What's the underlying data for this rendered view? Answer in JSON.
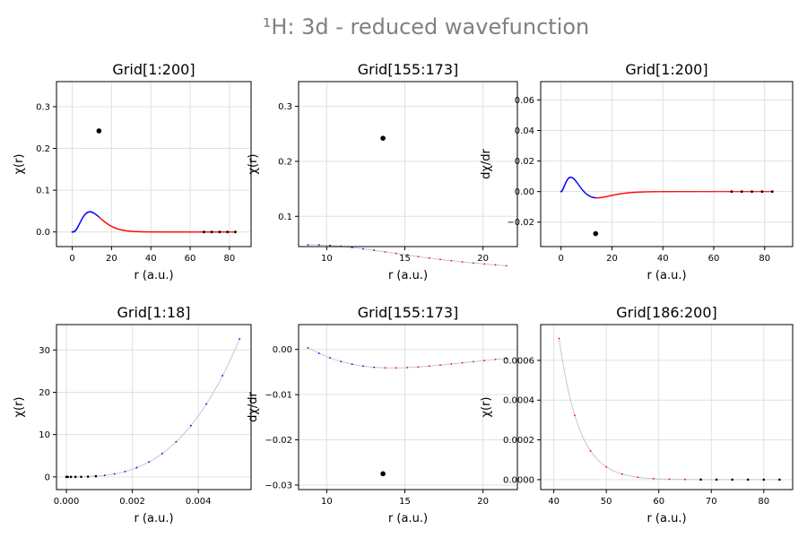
{
  "figure": {
    "title": "¹H: 3d - reduced wavefunction"
  },
  "colors": {
    "inner": "#0000ff",
    "outer": "#ff0000",
    "marker": "#000000",
    "curve": "#c8c8c8",
    "title": "#808080"
  },
  "chart_data": [
    {
      "type": "scatter",
      "title": "Grid[1:200]",
      "xlabel": "r (a.u.)",
      "ylabel": "χ(r)",
      "xlim": [
        -8,
        91
      ],
      "ylim": [
        -0.035,
        0.36
      ],
      "xticks": [
        0,
        20,
        40,
        60,
        80
      ],
      "xtick_labels": [
        "0",
        "20",
        "40",
        "60",
        "80"
      ],
      "yticks": [
        0,
        0.1,
        0.2,
        0.3
      ],
      "ytick_labels": [
        "0.0",
        "0.1",
        "0.2",
        "0.3"
      ],
      "curve": "wave",
      "range": [
        0,
        83
      ],
      "n": 200,
      "split": 13.6,
      "highlight": [
        13.6,
        0.242
      ],
      "tail_black": [
        67,
        71,
        75,
        79,
        83
      ]
    },
    {
      "type": "scatter",
      "title": "Grid[155:173]",
      "xlabel": "r (a.u.)",
      "ylabel": "χ(r)",
      "xlim": [
        8.2,
        22.2
      ],
      "ylim": [
        0.045,
        0.345
      ],
      "xticks": [
        10,
        15,
        20
      ],
      "xtick_labels": [
        "10",
        "15",
        "20"
      ],
      "yticks": [
        0.1,
        0.2,
        0.3
      ],
      "ytick_labels": [
        "0.1",
        "0.2",
        "0.3"
      ],
      "curve": "wave",
      "range": [
        8.8,
        21.5
      ],
      "n": 19,
      "split": 13.6,
      "highlight": [
        13.6,
        0.242
      ],
      "tail_black": []
    },
    {
      "type": "scatter",
      "title": "Grid[1:200]",
      "xlabel": "r (a.u.)",
      "ylabel": "dχ/dr",
      "xlim": [
        -8,
        91
      ],
      "ylim": [
        -0.036,
        0.072
      ],
      "xticks": [
        0,
        20,
        40,
        60,
        80
      ],
      "xtick_labels": [
        "0",
        "20",
        "40",
        "60",
        "80"
      ],
      "yticks": [
        -0.02,
        0,
        0.02,
        0.04,
        0.06
      ],
      "ytick_labels": [
        "−0.02",
        "0.00",
        "0.02",
        "0.04",
        "0.06"
      ],
      "curve": "deriv",
      "range": [
        0,
        83
      ],
      "n": 200,
      "split": 13.6,
      "highlight": [
        13.6,
        -0.0275
      ],
      "tail_black": [
        67,
        71,
        75,
        79,
        83
      ]
    },
    {
      "type": "scatter",
      "title": "Grid[1:18]",
      "xlabel": "r (a.u.)",
      "ylabel": "χ(r)",
      "xlim": [
        -0.0003,
        0.0056
      ],
      "ylim": [
        -3,
        36
      ],
      "xticks": [
        0,
        0.002,
        0.004
      ],
      "xtick_labels": [
        "0.000",
        "0.002",
        "0.004"
      ],
      "yticks": [
        0,
        10,
        20,
        30
      ],
      "ytick_labels": [
        "0",
        "10",
        "20",
        "30"
      ],
      "curve": "cubic",
      "range": [
        0,
        0.00525
      ],
      "n": 18,
      "black_count": 7,
      "peak": 32.6,
      "highlight": null,
      "tail_black": []
    },
    {
      "type": "scatter",
      "title": "Grid[155:173]",
      "xlabel": "r (a.u.)",
      "ylabel": "dχ/dr",
      "xlim": [
        8.2,
        22.2
      ],
      "ylim": [
        -0.031,
        0.0055
      ],
      "xticks": [
        10,
        15,
        20
      ],
      "xtick_labels": [
        "10",
        "15",
        "20"
      ],
      "yticks": [
        -0.03,
        -0.02,
        -0.01,
        0
      ],
      "ytick_labels": [
        "−0.03",
        "−0.02",
        "−0.01",
        "0.00"
      ],
      "curve": "deriv",
      "range": [
        8.8,
        21.5
      ],
      "n": 19,
      "split": 13.6,
      "highlight": [
        13.6,
        -0.0275
      ],
      "tail_black": []
    },
    {
      "type": "scatter",
      "title": "Grid[186:200]",
      "xlabel": "r (a.u.)",
      "ylabel": "χ(r)",
      "xlim": [
        37.5,
        85.5
      ],
      "ylim": [
        -5e-05,
        0.00078
      ],
      "xticks": [
        40,
        50,
        60,
        70,
        80
      ],
      "xtick_labels": [
        "40",
        "50",
        "60",
        "70",
        "80"
      ],
      "yticks": [
        0,
        0.0002,
        0.0004,
        0.0006
      ],
      "ytick_labels": [
        "0.0000",
        "0.0002",
        "0.0004",
        "0.0006"
      ],
      "curve": "tail",
      "range": [
        41,
        83
      ],
      "n": 15,
      "y0": 0.00071,
      "black_from": 67,
      "highlight": null,
      "tail_black": []
    }
  ]
}
